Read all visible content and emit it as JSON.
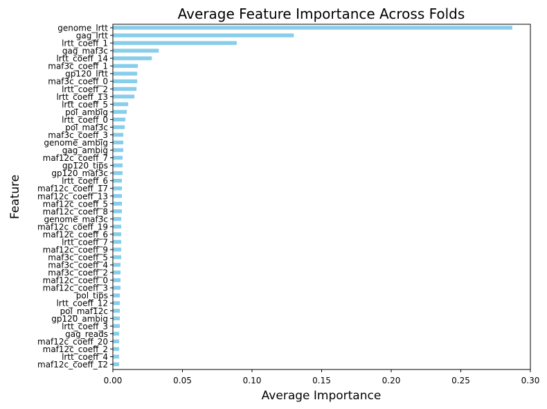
{
  "chart_data": {
    "type": "bar",
    "orientation": "horizontal",
    "title": "Average Feature Importance Across Folds",
    "xlabel": "Average Importance",
    "ylabel": "Feature",
    "xlim": [
      0,
      0.3
    ],
    "xticks": [
      "0.00",
      "0.05",
      "0.10",
      "0.15",
      "0.20",
      "0.25",
      "0.30"
    ],
    "xtick_values": [
      0,
      0.05,
      0.1,
      0.15,
      0.2,
      0.25,
      0.3
    ],
    "bar_color": "#87CEEB",
    "grid": false,
    "categories": [
      "genome_lrtt",
      "gag_lrtt",
      "lrtt_coeff_1",
      "gag_maf3c",
      "lrtt_coeff_14",
      "maf3c_coeff_1",
      "gp120_lrtt",
      "maf3c_coeff_0",
      "lrtt_coeff_2",
      "lrtt_coeff_13",
      "lrtt_coeff_5",
      "pol_ambig",
      "lrtt_coeff_0",
      "pol_maf3c",
      "maf3c_coeff_3",
      "genome_ambig",
      "gag_ambig",
      "maf12c_coeff_7",
      "gp120_tips",
      "gp120_maf3c",
      "lrtt_coeff_6",
      "maf12c_coeff_17",
      "maf12c_coeff_13",
      "maf12c_coeff_5",
      "maf12c_coeff_8",
      "genome_maf3c",
      "maf12c_coeff_19",
      "maf12c_coeff_6",
      "lrtt_coeff_7",
      "maf12c_coeff_9",
      "maf3c_coeff_5",
      "maf3c_coeff_4",
      "maf3c_coeff_2",
      "maf12c_coeff_0",
      "maf12c_coeff_3",
      "pol_tips",
      "lrtt_coeff_12",
      "pol_maf12c",
      "gp120_ambig",
      "lrtt_coeff_3",
      "gag_reads",
      "maf12c_coeff_20",
      "maf12c_coeff_2",
      "lrtt_coeff_4",
      "maf12c_coeff_12"
    ],
    "values": [
      0.287,
      0.13,
      0.089,
      0.033,
      0.028,
      0.018,
      0.0175,
      0.0175,
      0.017,
      0.0155,
      0.011,
      0.01,
      0.009,
      0.0085,
      0.0075,
      0.0075,
      0.0075,
      0.007,
      0.007,
      0.007,
      0.0065,
      0.0065,
      0.0065,
      0.0065,
      0.0065,
      0.006,
      0.006,
      0.006,
      0.006,
      0.006,
      0.006,
      0.0055,
      0.0055,
      0.0055,
      0.0055,
      0.005,
      0.005,
      0.005,
      0.005,
      0.005,
      0.0045,
      0.0045,
      0.0045,
      0.0045,
      0.0045
    ]
  }
}
